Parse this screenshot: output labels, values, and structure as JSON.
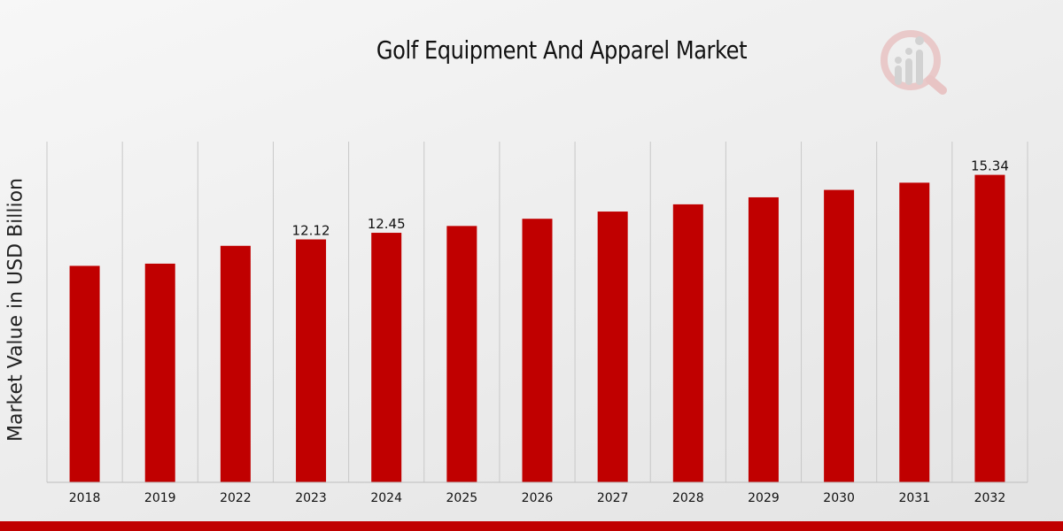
{
  "chart_data": {
    "type": "bar",
    "title": "Golf Equipment And Apparel Market",
    "xlabel": "",
    "ylabel": "Market Value in USD Billion",
    "categories": [
      "2018",
      "2019",
      "2022",
      "2023",
      "2024",
      "2025",
      "2026",
      "2027",
      "2028",
      "2029",
      "2030",
      "2031",
      "2032"
    ],
    "values": [
      10.8,
      10.91,
      11.8,
      12.12,
      12.45,
      12.79,
      13.15,
      13.51,
      13.87,
      14.22,
      14.59,
      14.95,
      15.34
    ],
    "data_labels": [
      {
        "category": "2023",
        "text": "12.12"
      },
      {
        "category": "2024",
        "text": "12.45"
      },
      {
        "category": "2032",
        "text": "15.34"
      }
    ],
    "ylim": [
      0,
      17.0
    ],
    "grid": "vertical",
    "bar_color": "#c00000"
  }
}
